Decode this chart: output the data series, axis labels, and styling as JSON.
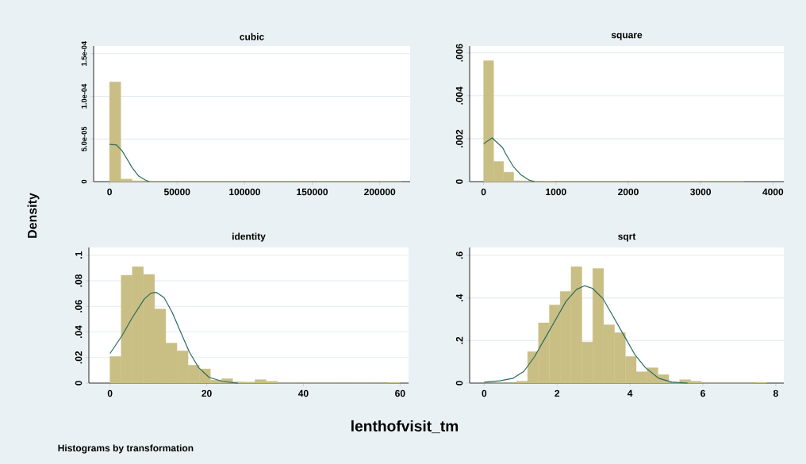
{
  "chart_data": [
    {
      "type": "histogram",
      "title": "cubic",
      "ylabel": "Density",
      "xlim": [
        -11800,
        222500
      ],
      "ylim": [
        0,
        0.000159
      ],
      "xticks": [
        0,
        50000,
        100000,
        150000,
        200000
      ],
      "yticks": [
        0,
        {
          "value": 5e-05,
          "label": "5.0e-05"
        },
        {
          "value": 0.0001,
          "label": "1.0e-04"
        },
        {
          "value": 0.00015,
          "label": "1.5e-04"
        }
      ],
      "grid": "y",
      "series": [
        {
          "color": "#c9bf85",
          "bins": [
            0,
            8308,
            16615,
            24923,
            33231,
            41538,
            49846,
            58154,
            66462,
            74769,
            83077,
            91385,
            99692,
            108000,
            116308,
            124615,
            132923,
            141231,
            149538,
            157846,
            166154,
            174462,
            182769,
            191077,
            199385,
            207692,
            216000
          ],
          "values": [
            0.000117,
            3e-06,
            1e-06,
            0,
            0,
            0,
            0,
            0,
            0,
            0,
            0,
            0,
            0,
            0,
            0,
            0,
            0,
            0,
            0,
            0,
            0,
            0,
            0,
            0,
            0,
            0
          ]
        },
        {
          "type": "line",
          "color": "#2a6a5e",
          "x": [
            0,
            4900,
            9200,
            12700,
            16700,
            21600,
            26500,
            29400
          ],
          "values": [
            4.35e-05,
            4.32e-05,
            3.64e-05,
            2.72e-05,
            1.64e-05,
            6.5e-06,
            1.9e-06,
            0
          ]
        }
      ]
    },
    {
      "type": "histogram",
      "title": "square",
      "xlim": [
        -193,
        4150
      ],
      "ylim": [
        0,
        0.00632
      ],
      "xticks": [
        0,
        1000,
        2000,
        3000,
        4000
      ],
      "yticks": [
        0,
        {
          "value": 0.002,
          "label": ".002"
        },
        {
          "value": 0.004,
          "label": ".004"
        },
        {
          "value": 0.006,
          "label": ".006"
        }
      ],
      "grid": "y",
      "series": [
        {
          "color": "#c9bf85",
          "bins": [
            0,
            138.5,
            276.9,
            415.4,
            553.8,
            692.3,
            830.8,
            969.2,
            1107.7,
            1246.2,
            1384.6,
            1523.1,
            1661.5,
            1800,
            1938.5,
            2076.9,
            2215.4,
            2353.8,
            2492.3,
            2630.8,
            2769.2,
            2907.7,
            3046.2,
            3184.6,
            3323.1,
            3461.5,
            3600
          ],
          "values": [
            0.00564,
            0.00094,
            0.00044,
            4e-05,
            3e-05,
            0,
            2e-05,
            0,
            0,
            0,
            0,
            0,
            0,
            0,
            0,
            0,
            0,
            0,
            0,
            0,
            0,
            0,
            0,
            0,
            0,
            0
          ]
        },
        {
          "type": "line",
          "color": "#2a6a5e",
          "x": [
            0,
            117,
            263,
            300,
            409,
            518,
            628,
            701
          ],
          "values": [
            0.00176,
            0.00204,
            0.00158,
            0.00133,
            0.00071,
            0.00031,
            7e-05,
            0
          ]
        }
      ]
    },
    {
      "type": "histogram",
      "title": "identity",
      "xlabel": "lenthofvisit_tm",
      "annotations": [
        "Histograms by transformation"
      ],
      "xlim": [
        -4.37,
        61.75
      ],
      "ylim": [
        0,
        0.106
      ],
      "xticks": [
        0,
        20,
        40,
        60
      ],
      "yticks": [
        0,
        {
          "value": 0.02,
          "label": ".02"
        },
        {
          "value": 0.04,
          "label": ".04"
        },
        {
          "value": 0.06,
          "label": ".06"
        },
        {
          "value": 0.08,
          "label": ".08"
        },
        {
          "value": 0.1,
          "label": ".1"
        }
      ],
      "grid": "y",
      "series": [
        {
          "color": "#c9bf85",
          "bins": [
            0,
            2.31,
            4.62,
            6.92,
            9.23,
            11.54,
            13.85,
            16.15,
            18.46,
            20.77,
            23.08,
            25.38,
            27.69,
            30,
            32.31,
            34.62,
            36.92,
            39.23,
            41.54,
            43.85,
            46.15,
            48.46,
            50.77,
            53.08,
            55.38,
            57.69,
            60
          ],
          "values": [
            0.0208,
            0.0843,
            0.0909,
            0.0849,
            0.0579,
            0.0313,
            0.0252,
            0.014,
            0.0111,
            0.0023,
            0.0035,
            0.001,
            0.0008,
            0.0027,
            0.0014,
            0,
            0,
            0,
            0,
            0,
            0,
            0,
            0,
            0,
            0,
            0.0006
          ]
        },
        {
          "type": "line",
          "color": "#2a6a5e",
          "x": [
            0,
            2.46,
            4.64,
            7.1,
            8.47,
            9.56,
            11.2,
            12.84,
            14.48,
            16.39,
            18.31,
            20.49,
            23.22,
            25.41,
            26.5
          ],
          "values": [
            0.0231,
            0.0369,
            0.0513,
            0.0658,
            0.0703,
            0.0709,
            0.0668,
            0.0555,
            0.041,
            0.0245,
            0.0122,
            0.0045,
            0.0014,
            0.0004,
            0
          ]
        }
      ]
    },
    {
      "type": "histogram",
      "title": "sqrt",
      "xlim": [
        -0.399,
        8.22
      ],
      "ylim": [
        0,
        0.637
      ],
      "xticks": [
        0,
        2,
        4,
        6,
        8
      ],
      "yticks": [
        0,
        {
          "value": 0.2,
          "label": ".2"
        },
        {
          "value": 0.4,
          "label": ".4"
        },
        {
          "value": 0.6,
          "label": ".6"
        }
      ],
      "grid": "y",
      "series": [
        {
          "color": "#c9bf85",
          "bins": [
            0,
            0.298,
            0.596,
            0.894,
            1.192,
            1.49,
            1.788,
            2.085,
            2.383,
            2.681,
            2.979,
            3.277,
            3.575,
            3.873,
            4.171,
            4.469,
            4.767,
            5.065,
            5.363,
            5.661,
            5.958,
            6.256,
            6.554,
            6.852,
            7.15,
            7.448,
            7.746
          ],
          "values": [
            0,
            0,
            0,
            0.009,
            0.148,
            0.283,
            0.367,
            0.43,
            0.547,
            0.193,
            0.538,
            0.274,
            0.237,
            0.125,
            0.053,
            0.072,
            0.04,
            0,
            0.016,
            0.009,
            0,
            0,
            0,
            0,
            0,
            0.004
          ]
        },
        {
          "type": "line",
          "color": "#2a6a5e",
          "x": [
            0,
            0.435,
            0.797,
            1.087,
            1.377,
            1.667,
            1.957,
            2.246,
            2.536,
            2.754,
            2.971,
            3.261,
            3.551,
            3.841,
            4.13,
            4.42,
            4.783,
            5.145,
            5.58
          ],
          "values": [
            0.004,
            0.011,
            0.023,
            0.055,
            0.123,
            0.21,
            0.297,
            0.384,
            0.44,
            0.457,
            0.445,
            0.396,
            0.309,
            0.222,
            0.135,
            0.073,
            0.023,
            0.005,
            0
          ]
        }
      ]
    }
  ]
}
